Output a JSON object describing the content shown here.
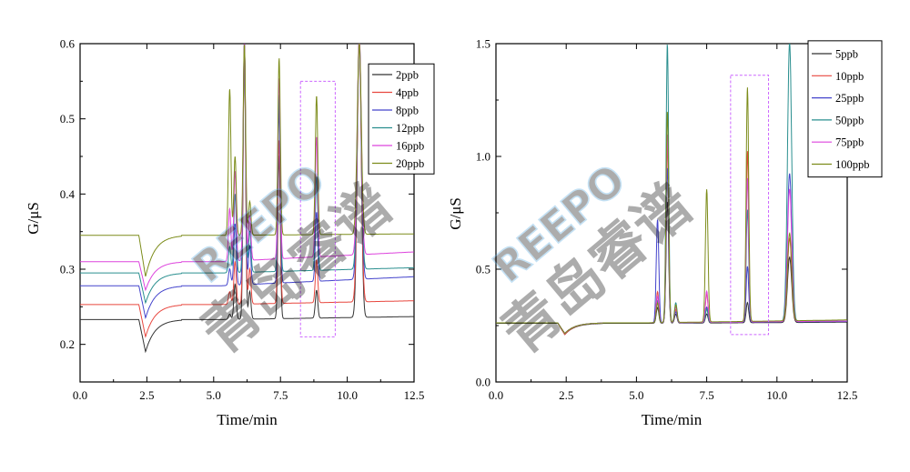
{
  "watermark": {
    "latin": "REEPO",
    "cjk": "青岛睿谱",
    "color": "#4aa3df"
  },
  "chart_data": [
    {
      "type": "line",
      "xlabel": "Time/min",
      "ylabel": "G/μS",
      "xlim": [
        0,
        12.5
      ],
      "ylim": [
        0.15,
        0.6
      ],
      "xticks": [
        "0.0",
        "2.5",
        "5.0",
        "7.5",
        "10.0",
        "12.5"
      ],
      "yticks": [
        "0.2",
        "0.3",
        "0.4",
        "0.5",
        "0.6"
      ],
      "legend_position": "top-right",
      "highlight_box": {
        "x": [
          8.25,
          9.55
        ],
        "y": [
          0.21,
          0.55
        ],
        "color": "#cc66ff"
      },
      "series": [
        {
          "name": "2ppb",
          "color": "#333333",
          "baseline": 0.233,
          "tail": 0.237,
          "dip": 0.19,
          "peaks": [
            [
              5.6,
              0.24
            ],
            [
              5.8,
              0.28
            ],
            [
              6.15,
              0.6
            ],
            [
              6.35,
              0.27
            ],
            [
              7.45,
              0.45
            ],
            [
              8.85,
              0.27
            ],
            [
              10.45,
              0.6
            ]
          ]
        },
        {
          "name": "4ppb",
          "color": "#e8473f",
          "baseline": 0.253,
          "tail": 0.258,
          "dip": 0.21,
          "peaks": [
            [
              5.6,
              0.27
            ],
            [
              5.8,
              0.31
            ],
            [
              6.15,
              0.6
            ],
            [
              6.35,
              0.3
            ],
            [
              7.45,
              0.47
            ],
            [
              8.85,
              0.31
            ],
            [
              10.45,
              0.6
            ]
          ]
        },
        {
          "name": "8ppb",
          "color": "#4444cc",
          "baseline": 0.278,
          "tail": 0.29,
          "dip": 0.235,
          "peaks": [
            [
              5.6,
              0.3
            ],
            [
              5.8,
              0.36
            ],
            [
              6.15,
              0.6
            ],
            [
              6.35,
              0.33
            ],
            [
              7.45,
              0.51
            ],
            [
              8.85,
              0.37
            ],
            [
              10.45,
              0.6
            ]
          ]
        },
        {
          "name": "12ppb",
          "color": "#2a8f8f",
          "baseline": 0.295,
          "tail": 0.302,
          "dip": 0.255,
          "peaks": [
            [
              5.6,
              0.33
            ],
            [
              5.8,
              0.4
            ],
            [
              6.15,
              0.6
            ],
            [
              6.35,
              0.35
            ],
            [
              7.45,
              0.53
            ],
            [
              8.85,
              0.42
            ],
            [
              10.45,
              0.6
            ]
          ]
        },
        {
          "name": "16ppb",
          "color": "#dd44dd",
          "baseline": 0.31,
          "tail": 0.323,
          "dip": 0.272,
          "peaks": [
            [
              5.6,
              0.38
            ],
            [
              5.8,
              0.43
            ],
            [
              6.15,
              0.6
            ],
            [
              6.35,
              0.37
            ],
            [
              7.45,
              0.55
            ],
            [
              8.85,
              0.47
            ],
            [
              10.45,
              0.6
            ]
          ]
        },
        {
          "name": "20ppb",
          "color": "#7c8c1a",
          "baseline": 0.345,
          "tail": 0.347,
          "dip": 0.29,
          "peaks": [
            [
              5.6,
              0.54
            ],
            [
              5.8,
              0.45
            ],
            [
              6.15,
              0.6
            ],
            [
              6.35,
              0.39
            ],
            [
              7.45,
              0.58
            ],
            [
              8.85,
              0.53
            ],
            [
              10.45,
              0.6
            ]
          ]
        }
      ]
    },
    {
      "type": "line",
      "xlabel": "Time/min",
      "ylabel": "G/μS",
      "xlim": [
        0,
        12.5
      ],
      "ylim": [
        0,
        1.5
      ],
      "xticks": [
        "0.0",
        "2.5",
        "5.0",
        "7.5",
        "10.0",
        "12.5"
      ],
      "yticks": [
        "0.0",
        "0.5",
        "1.0",
        "1.5"
      ],
      "legend_position": "top-right",
      "highlight_box": {
        "x": [
          8.35,
          9.7
        ],
        "y": [
          0.21,
          1.36
        ],
        "color": "#cc66ff"
      },
      "series": [
        {
          "name": "5ppb",
          "color": "#333333",
          "baseline": 0.26,
          "tail": 0.265,
          "dip": 0.21,
          "peaks": [
            [
              5.75,
              0.33
            ],
            [
              6.1,
              0.8
            ],
            [
              6.4,
              0.3
            ],
            [
              7.5,
              0.3
            ],
            [
              8.95,
              0.35
            ],
            [
              10.45,
              0.55
            ]
          ]
        },
        {
          "name": "10ppb",
          "color": "#e8473f",
          "baseline": 0.262,
          "tail": 0.27,
          "dip": 0.21,
          "peaks": [
            [
              5.75,
              0.4
            ],
            [
              6.1,
              1.05
            ],
            [
              6.4,
              0.32
            ],
            [
              7.5,
              0.39
            ],
            [
              8.95,
              1.02
            ],
            [
              10.45,
              0.63
            ]
          ]
        },
        {
          "name": "25ppb",
          "color": "#4444cc",
          "baseline": 0.262,
          "tail": 0.268,
          "dip": 0.215,
          "peaks": [
            [
              5.75,
              0.72
            ],
            [
              6.1,
              0.95
            ],
            [
              6.4,
              0.31
            ],
            [
              7.5,
              0.33
            ],
            [
              8.95,
              0.51
            ],
            [
              10.45,
              0.92
            ]
          ]
        },
        {
          "name": "50ppb",
          "color": "#2a8f8f",
          "baseline": 0.262,
          "tail": 0.27,
          "dip": 0.215,
          "peaks": [
            [
              5.75,
              0.36
            ],
            [
              6.1,
              1.5
            ],
            [
              6.4,
              0.35
            ],
            [
              7.5,
              0.32
            ],
            [
              8.95,
              0.76
            ],
            [
              10.45,
              1.5
            ]
          ]
        },
        {
          "name": "75ppb",
          "color": "#dd44dd",
          "baseline": 0.262,
          "tail": 0.27,
          "dip": 0.215,
          "peaks": [
            [
              5.75,
              0.38
            ],
            [
              6.1,
              1.1
            ],
            [
              6.4,
              0.33
            ],
            [
              7.5,
              0.4
            ],
            [
              8.95,
              0.9
            ],
            [
              10.45,
              0.85
            ]
          ]
        },
        {
          "name": "100ppb",
          "color": "#7c8c1a",
          "baseline": 0.262,
          "tail": 0.275,
          "dip": 0.215,
          "peaks": [
            [
              5.75,
              0.35
            ],
            [
              6.1,
              1.2
            ],
            [
              6.4,
              0.34
            ],
            [
              7.5,
              0.85
            ],
            [
              8.95,
              1.3
            ],
            [
              10.45,
              0.65
            ]
          ]
        }
      ]
    }
  ]
}
